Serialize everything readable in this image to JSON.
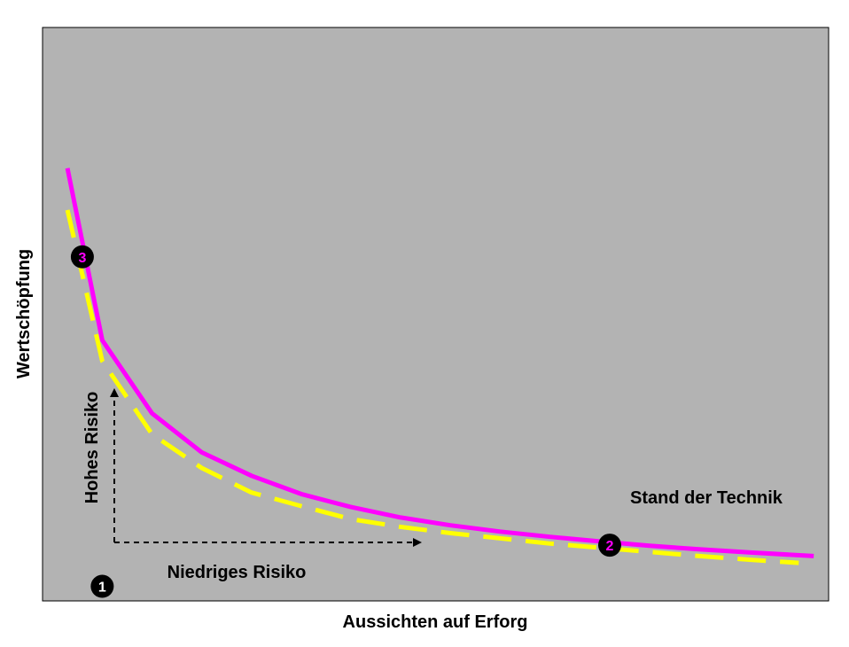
{
  "chart_data": {
    "type": "line",
    "title": "",
    "xlabel": "Aussichten auf Erforg",
    "ylabel": "Wertschöpfung",
    "grid": false,
    "background": "#b3b3b3",
    "series": [
      {
        "style": "solid",
        "color": "#ff00ff",
        "x": [
          0.3,
          1,
          2,
          3,
          4,
          5,
          6,
          7,
          8,
          9,
          10,
          11,
          12,
          13,
          14,
          15.3
        ],
        "y": [
          9.3,
          6.0,
          4.6,
          3.85,
          3.4,
          3.05,
          2.8,
          2.6,
          2.45,
          2.33,
          2.23,
          2.14,
          2.06,
          1.99,
          1.93,
          1.86
        ]
      },
      {
        "style": "dashed",
        "color": "#ffff00",
        "x": [
          0.3,
          1,
          2,
          3,
          4,
          5,
          6,
          7,
          8,
          9,
          10,
          11,
          12,
          13,
          14,
          15
        ],
        "y": [
          8.5,
          5.6,
          4.2,
          3.55,
          3.08,
          2.82,
          2.57,
          2.42,
          2.3,
          2.2,
          2.1,
          2.02,
          1.94,
          1.86,
          1.79,
          1.73
        ]
      }
    ],
    "markers": [
      {
        "id": "point-3",
        "number": "3",
        "x": 0.6,
        "y": 7.6,
        "text_color": "#ff00ff"
      },
      {
        "id": "point-2",
        "number": "2",
        "x": 11.2,
        "y": 2.07,
        "text_color": "#ff00ff"
      },
      {
        "id": "point-1",
        "number": "1",
        "x": 1.0,
        "y": 1.28,
        "text_color": "#ffffff"
      }
    ],
    "annotations": {
      "vertical_arrow_label": "Hohes Risiko",
      "horizontal_arrow_label": "Niedriges Risiko",
      "state_of_art_label": "Stand der Technik"
    },
    "xlim": [
      -0.2,
      15.6
    ],
    "ylim": [
      1.0,
      12.0
    ]
  }
}
